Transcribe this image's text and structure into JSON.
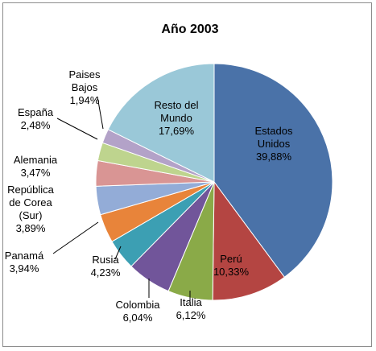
{
  "chart_data": {
    "type": "pie",
    "title": "Año 2003",
    "slices": [
      {
        "label": [
          "Estados",
          "Unidos"
        ],
        "value_label": "39,88%",
        "value": 39.88,
        "color": "#4a72a8"
      },
      {
        "label": [
          "Perú"
        ],
        "value_label": "10,33%",
        "value": 10.33,
        "color": "#b44542"
      },
      {
        "label": [
          "Italia"
        ],
        "value_label": "6,12%",
        "value": 6.12,
        "color": "#8aaa48"
      },
      {
        "label": [
          "Colombia"
        ],
        "value_label": "6,04%",
        "value": 6.04,
        "color": "#71559a"
      },
      {
        "label": [
          "Rusia"
        ],
        "value_label": "4,23%",
        "value": 4.23,
        "color": "#3c9fb3"
      },
      {
        "label": [
          "Panamá"
        ],
        "value_label": "3,94%",
        "value": 3.94,
        "color": "#e8843a"
      },
      {
        "label": [
          "República",
          "de Corea",
          "(Sur)"
        ],
        "value_label": "3,89%",
        "value": 3.89,
        "color": "#93acd7"
      },
      {
        "label": [
          "Alemania"
        ],
        "value_label": "3,47%",
        "value": 3.47,
        "color": "#d99594"
      },
      {
        "label": [
          "España"
        ],
        "value_label": "2,48%",
        "value": 2.48,
        "color": "#bed48e"
      },
      {
        "label": [
          "Paises",
          "Bajos"
        ],
        "value_label": "1,94%",
        "value": 1.94,
        "color": "#b3a2c8"
      },
      {
        "label": [
          "Resto del",
          "Mundo"
        ],
        "value_label": "17,69%",
        "value": 17.69,
        "color": "#9ac8d8"
      }
    ]
  }
}
